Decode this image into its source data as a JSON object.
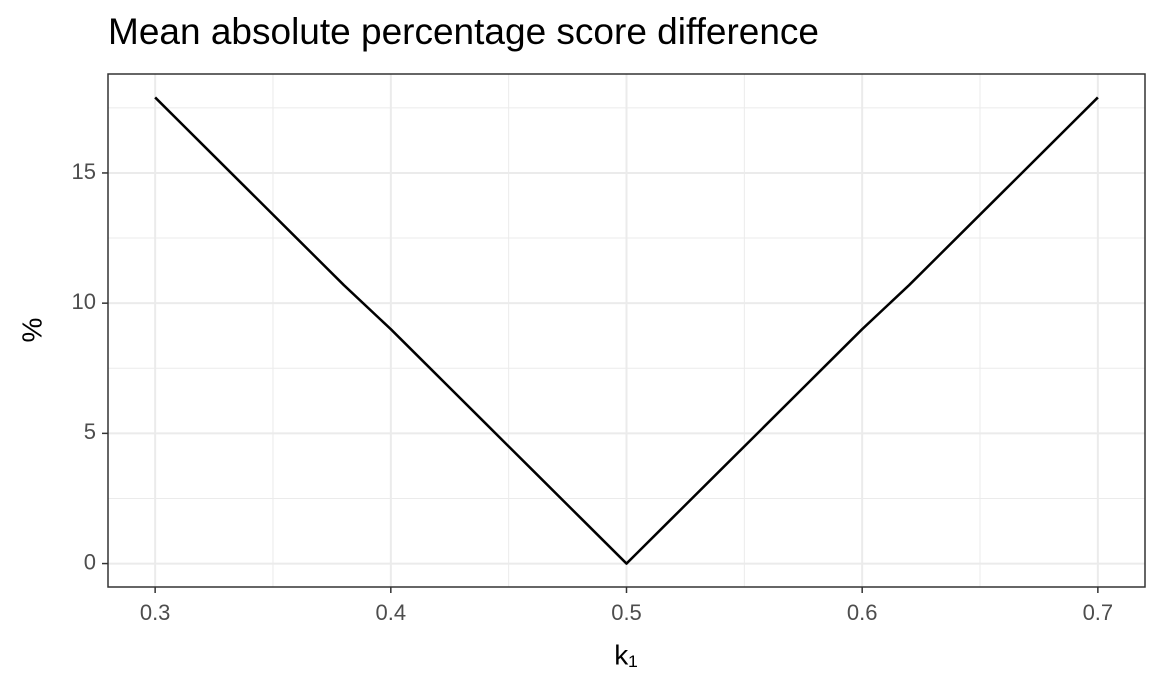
{
  "chart_data": {
    "type": "line",
    "title": "Mean absolute percentage score difference",
    "x_label": "k₁",
    "y_label": "%",
    "x": [
      0.3,
      0.32,
      0.34,
      0.36,
      0.38,
      0.4,
      0.42,
      0.44,
      0.46,
      0.48,
      0.5,
      0.52,
      0.54,
      0.56,
      0.58,
      0.6,
      0.62,
      0.64,
      0.66,
      0.68,
      0.7
    ],
    "series": [
      {
        "color": "#000000",
        "values": [
          17.9,
          16.1,
          14.3,
          12.5,
          10.7,
          9.0,
          7.2,
          5.4,
          3.6,
          1.8,
          0,
          1.8,
          3.6,
          5.4,
          7.2,
          9.0,
          10.7,
          12.5,
          14.3,
          16.1,
          17.9
        ]
      }
    ],
    "xlim": [
      0.28,
      0.72
    ],
    "xticks": [
      0.3,
      0.4,
      0.5,
      0.6,
      0.7
    ],
    "ylim": [
      -0.9,
      18.8
    ],
    "yticks": [
      0,
      5,
      10,
      15
    ],
    "grid": true
  }
}
